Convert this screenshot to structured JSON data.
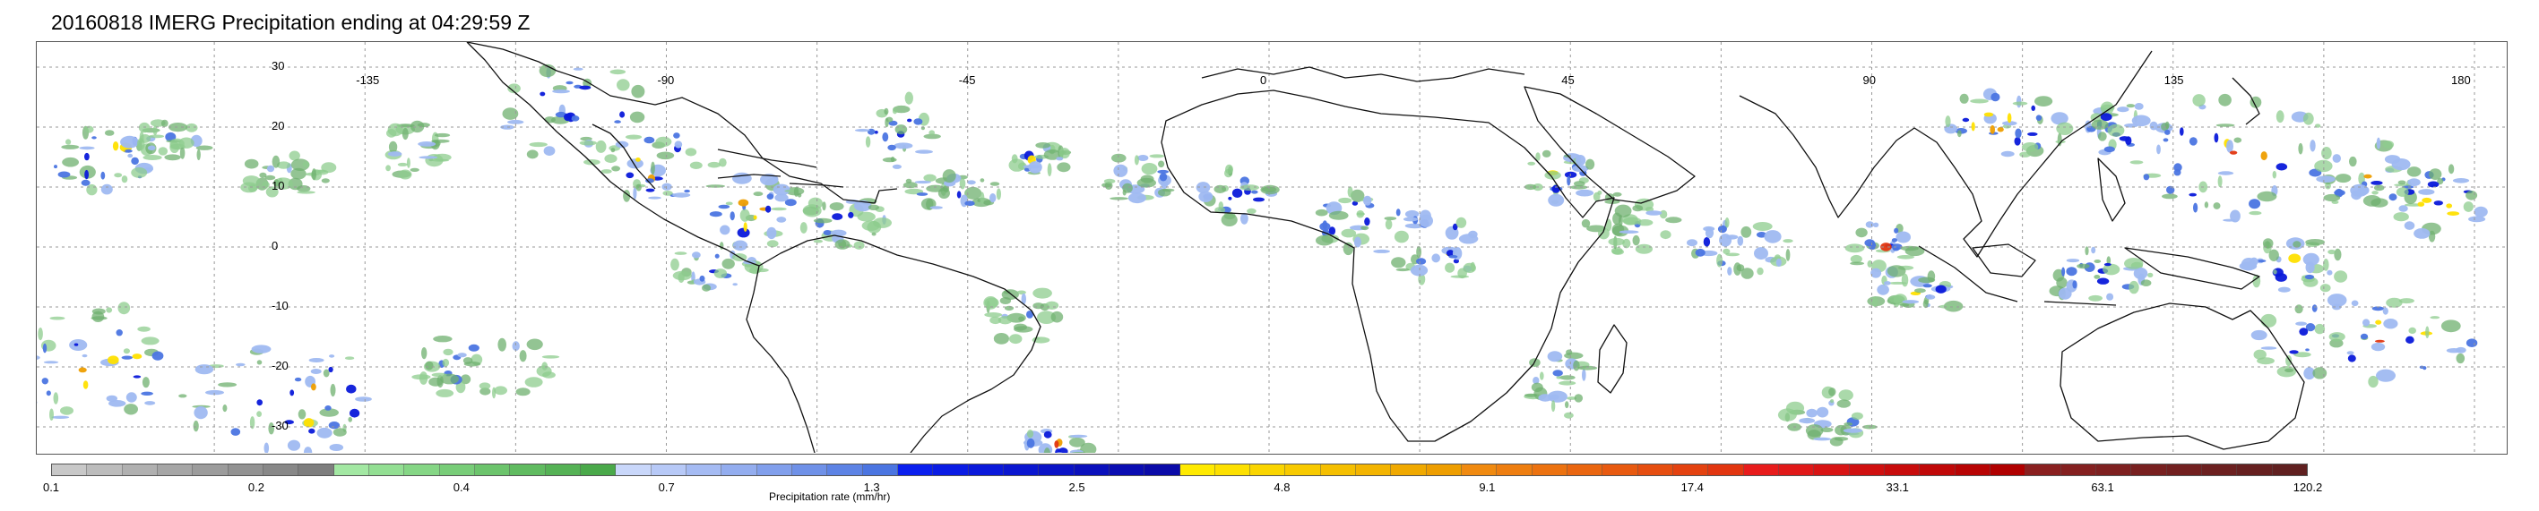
{
  "title": "20160818 IMERG Precipitation ending at 04:29:59 Z",
  "map": {
    "lon_labels": [
      "-135",
      "-90",
      "-45",
      "0",
      "45",
      "90",
      "135",
      "180"
    ],
    "lat_labels": [
      "30",
      "20",
      "10",
      "0",
      "-10",
      "-20",
      "-30"
    ]
  },
  "colorbar": {
    "label": "Precipitation rate (mm/hr)",
    "ticks": [
      "0.1",
      "0.2",
      "0.4",
      "0.7",
      "1.3",
      "2.5",
      "4.8",
      "9.1",
      "17.4",
      "33.1",
      "63.1",
      "120.2"
    ],
    "colors": [
      "#c8c8c8",
      "#bcbcbc",
      "#b0b0b0",
      "#a6a6a6",
      "#9c9c9c",
      "#929292",
      "#888888",
      "#7e7e7e",
      "#a3e8a3",
      "#93df93",
      "#85d685",
      "#78cd78",
      "#6cc46c",
      "#60bb60",
      "#55b255",
      "#4aa94a",
      "#c9d7fa",
      "#b7c9f7",
      "#a5bbf3",
      "#93adef",
      "#819fec",
      "#6f91e8",
      "#5d83e5",
      "#4b75e1",
      "#0a1fee",
      "#0a1ce4",
      "#0a19da",
      "#0a16d0",
      "#0a13c6",
      "#0a10bc",
      "#0a0db2",
      "#0a0aa8",
      "#ffea00",
      "#fde000",
      "#fad500",
      "#f8ca00",
      "#f5bf00",
      "#f3b400",
      "#f0a900",
      "#ee9e00",
      "#f08a10",
      "#ee7e10",
      "#ec7210",
      "#ea6610",
      "#e85a10",
      "#e64e10",
      "#e44210",
      "#e23610",
      "#e81c1c",
      "#e01818",
      "#d81414",
      "#d01010",
      "#c80c0c",
      "#c00808",
      "#b80404",
      "#b00000",
      "#8a2020",
      "#842020",
      "#7e2020",
      "#782020",
      "#722020",
      "#6c2020",
      "#662020",
      "#602020"
    ]
  }
}
